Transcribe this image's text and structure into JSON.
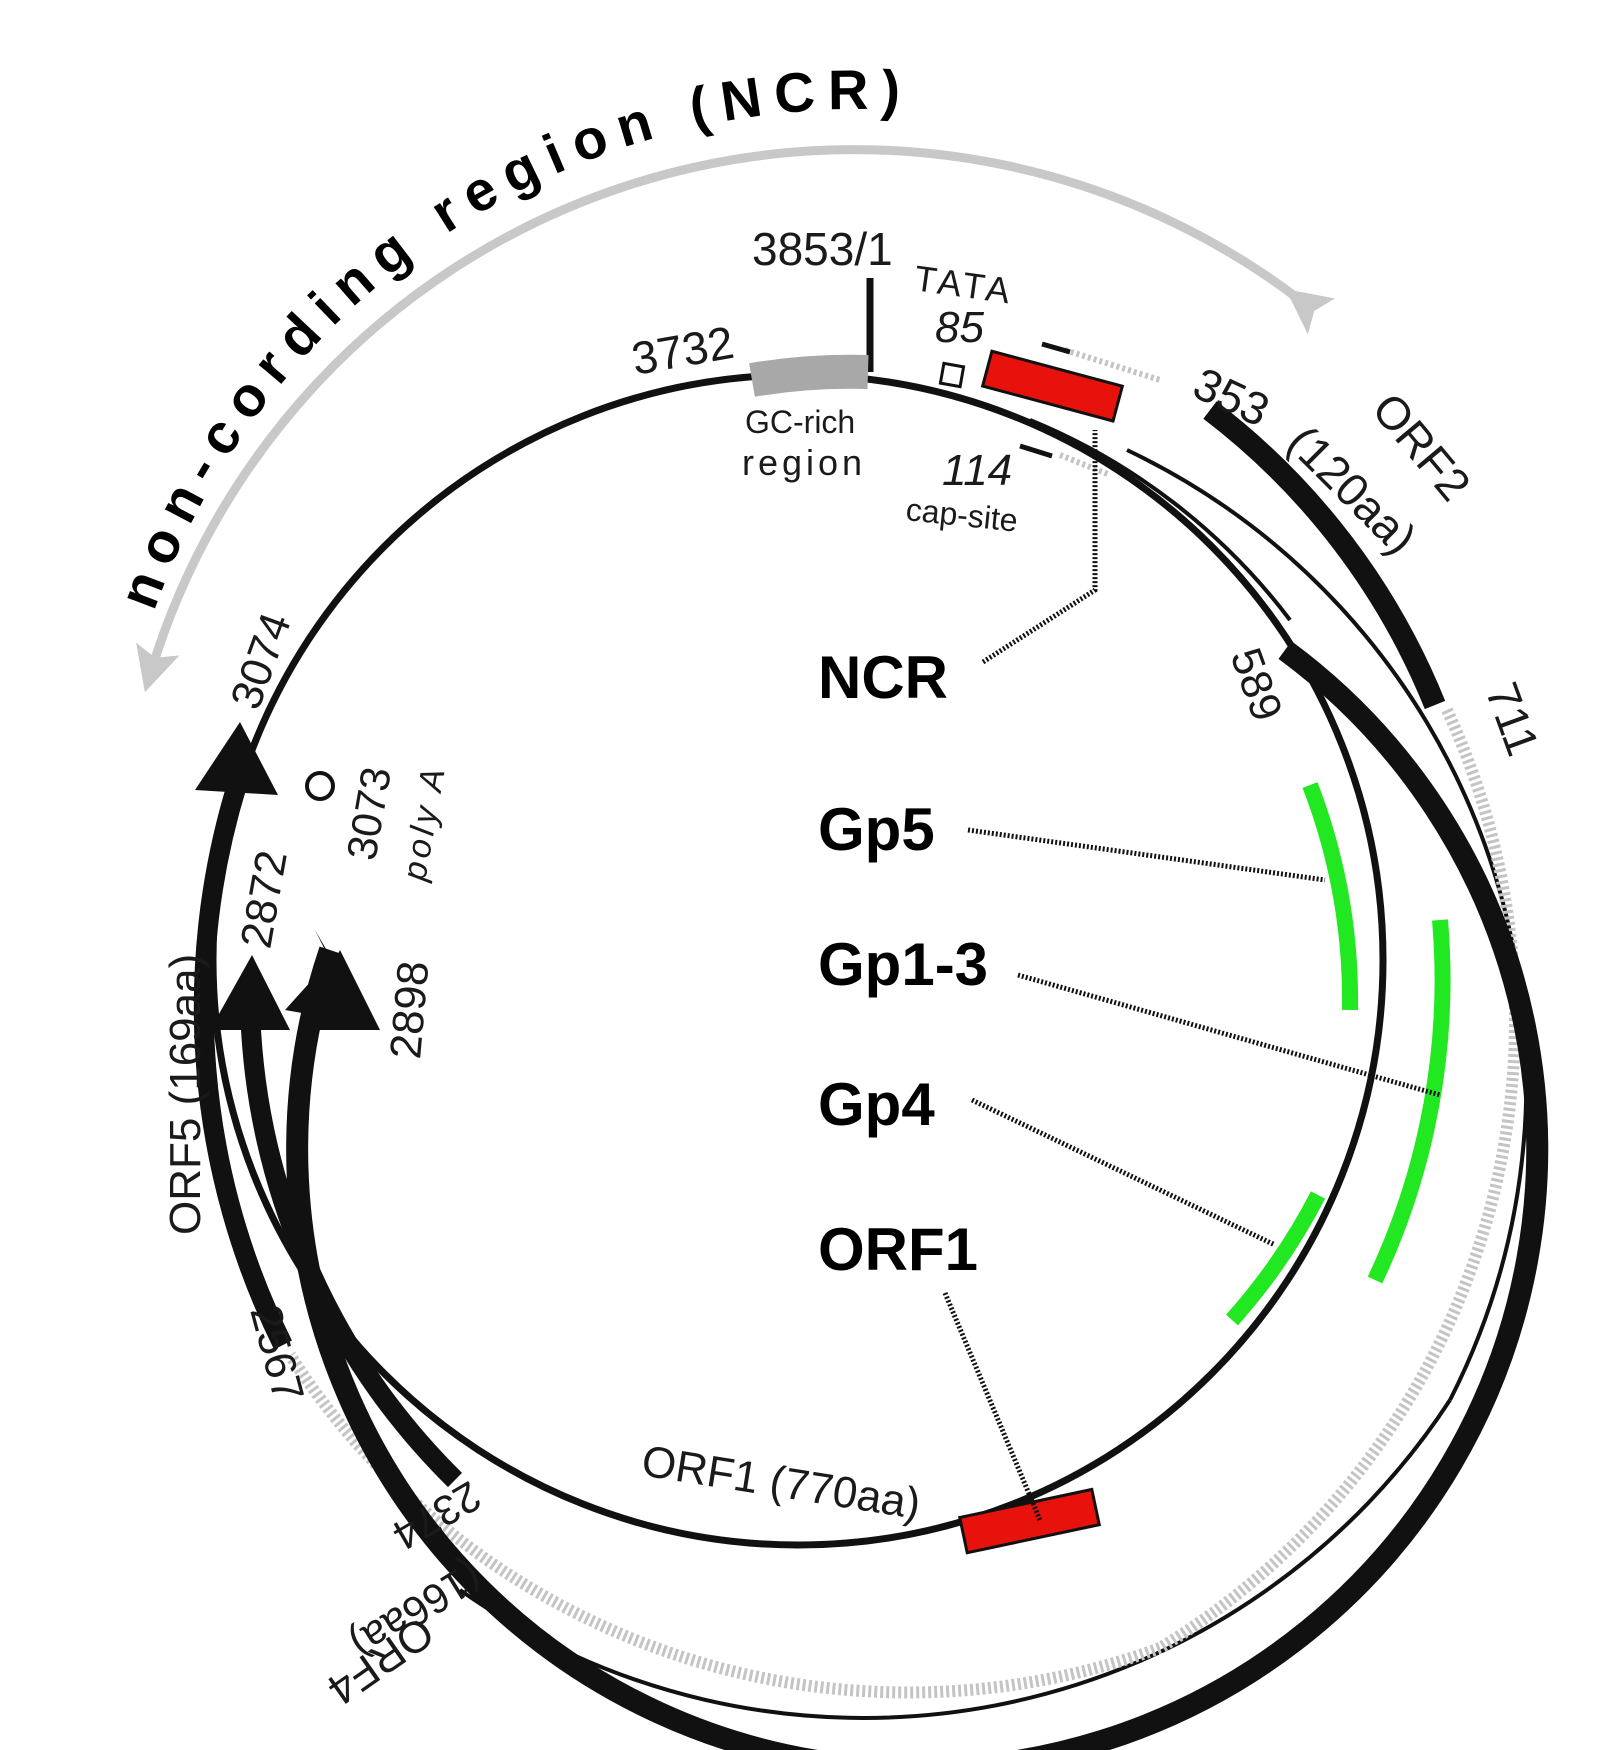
{
  "title_arc": "non-cording region (NCR)",
  "positions": {
    "origin": "3853/1",
    "gc_start": "3732",
    "tata_pos": "85",
    "cap_pos": "114",
    "orf2_start": "353",
    "orf2_end": "711",
    "orf1_start": "589",
    "orf5_end": "3074",
    "polya_pos": "3073",
    "orf4_end": "2872",
    "orf1_end": "2898",
    "orf5_start": "2567",
    "orf4_start": "2374"
  },
  "features": {
    "tata": "TATA",
    "cap_site": "cap-site",
    "gc_line1": "GC-rich",
    "gc_line2": "region",
    "polya": "poly A",
    "orf2": "ORF2",
    "orf2_len": "(120aa)",
    "orf1": "ORF1 (770aa)",
    "orf5": "ORF5 (169aa)",
    "orf4": "ORF4",
    "orf4_len": "(166aa)"
  },
  "legend": [
    "NCR",
    "Gp5",
    "Gp1-3",
    "Gp4",
    "ORF1"
  ],
  "colors": {
    "genome": "#111111",
    "ncr_arrow": "#c8c8c8",
    "probe_red": "#e8120c",
    "probe_green": "#22e822",
    "gc_region": "#a8a8a8",
    "untranslated": "#c4c4c4"
  }
}
